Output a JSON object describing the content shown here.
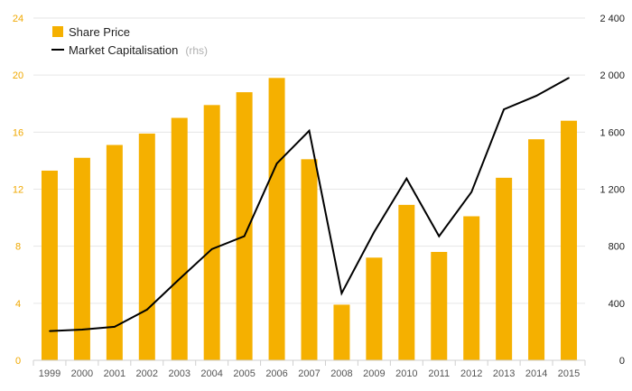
{
  "chart_data": {
    "type": "bar+line",
    "categories": [
      "1999",
      "2000",
      "2001",
      "2002",
      "2003",
      "2004",
      "2005",
      "2006",
      "2007",
      "2008",
      "2009",
      "2010",
      "2011",
      "2012",
      "2013",
      "2014",
      "2015"
    ],
    "series": [
      {
        "name": "Share Price",
        "type": "bar",
        "axis": "left",
        "color": "#f5b000",
        "values": [
          13.3,
          14.2,
          15.1,
          15.9,
          17.0,
          17.9,
          18.8,
          19.8,
          14.1,
          3.9,
          7.2,
          10.9,
          7.6,
          10.1,
          12.8,
          15.5,
          16.8
        ]
      },
      {
        "name": "Market Capitalisation",
        "type": "line",
        "axis": "right",
        "color": "#000000",
        "values": [
          205,
          215,
          235,
          355,
          570,
          780,
          870,
          1380,
          1610,
          470,
          900,
          1275,
          870,
          1180,
          1760,
          1855,
          1980
        ]
      }
    ],
    "legend": {
      "items": [
        {
          "label": "Share Price",
          "suffix": ""
        },
        {
          "label": "Market Capitalisation",
          "suffix": "(rhs)"
        }
      ],
      "position": "top-left"
    },
    "y_left": {
      "min": 0,
      "max": 24,
      "ticks": [
        "0",
        "4",
        "8",
        "12",
        "16",
        "20",
        "24"
      ]
    },
    "y_right": {
      "min": 0,
      "max": 2400,
      "ticks": [
        "0",
        "400",
        "800",
        "1 200",
        "1 600",
        "2 000",
        "2 400"
      ]
    },
    "grid": true
  }
}
